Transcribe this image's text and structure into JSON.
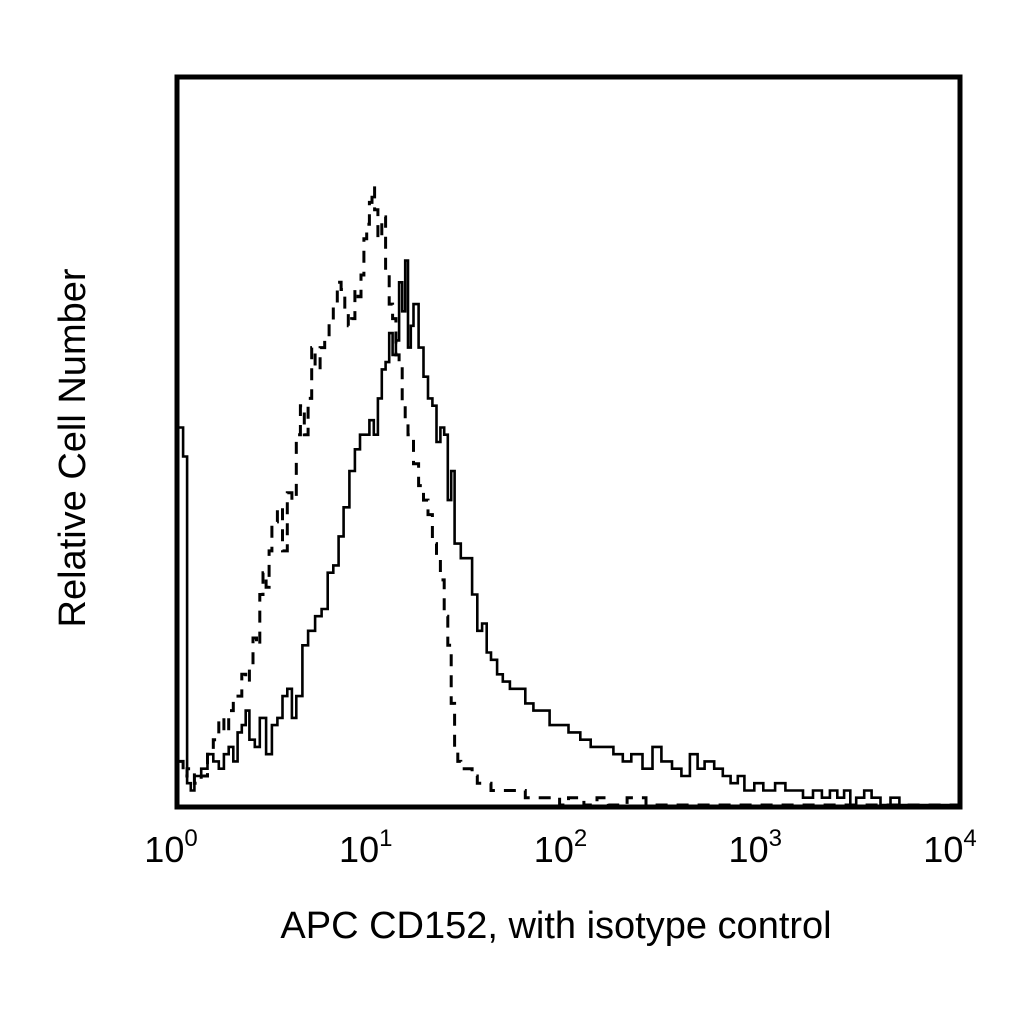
{
  "chart_data": {
    "type": "line",
    "title": "",
    "xlabel": "APC CD152, with isotype control",
    "ylabel": "Relative Cell Number",
    "x_scale": "log",
    "xlim": [
      1,
      10000
    ],
    "ylim": [
      0,
      100
    ],
    "grid": false,
    "legend": "none",
    "x_ticks": [
      {
        "value": 1,
        "base": "10",
        "exp": "0"
      },
      {
        "value": 10,
        "base": "10",
        "exp": "1"
      },
      {
        "value": 100,
        "base": "10",
        "exp": "2"
      },
      {
        "value": 1000,
        "base": "10",
        "exp": "3"
      },
      {
        "value": 10000,
        "base": "10",
        "exp": "4"
      }
    ],
    "y_ticks": [],
    "series": [
      {
        "style": "solid",
        "color": "#000000",
        "x": [
          1.0,
          1.05,
          1.1,
          1.15,
          1.2,
          1.3,
          1.4,
          1.5,
          1.6,
          1.7,
          1.8,
          1.9,
          2.0,
          2.1,
          2.2,
          2.3,
          2.45,
          2.6,
          2.8,
          3.0,
          3.2,
          3.4,
          3.6,
          3.8,
          4.0,
          4.3,
          4.6,
          5.0,
          5.4,
          5.8,
          6.2,
          6.6,
          7.0,
          7.5,
          8.0,
          8.5,
          9.0,
          9.5,
          10.0,
          10.5,
          11.0,
          11.5,
          12.0,
          12.5,
          13.0,
          13.5,
          14.0,
          14.5,
          15.0,
          15.5,
          16.0,
          17.0,
          18.0,
          19.0,
          20.0,
          21.0,
          22.0,
          23.0,
          24.0,
          25.0,
          26.0,
          28.0,
          30.0,
          32.0,
          34.0,
          36.0,
          38.0,
          40.0,
          43.0,
          46.0,
          50.0,
          55.0,
          60.0,
          66.0,
          72.0,
          80.0,
          90.0,
          100.0,
          115.0,
          130.0,
          150.0,
          170.0,
          190.0,
          210.0,
          240.0,
          270.0,
          300.0,
          340.0,
          380.0,
          420.0,
          460.0,
          500.0,
          560.0,
          620.0,
          680.0,
          740.0,
          800.0,
          900.0,
          1000.0,
          1150.0,
          1300.0,
          1450.0,
          1600.0,
          1800.0,
          2000.0,
          2200.0,
          2400.0,
          2600.0,
          2800.0,
          3000.0,
          3300.0,
          3600.0,
          4000.0,
          4500.0,
          5000.0,
          6000.0,
          7000.0,
          8000.0,
          9000.0,
          10000.0
        ],
        "y": [
          52,
          48,
          3,
          2,
          4,
          5,
          7,
          6,
          5,
          7,
          8,
          6,
          10,
          11,
          13,
          9,
          8,
          12,
          7,
          11,
          12,
          15,
          16,
          12,
          15,
          22,
          24,
          26,
          27,
          32,
          33,
          37,
          41,
          46,
          49,
          51,
          51,
          53,
          51,
          56,
          60,
          61,
          65,
          62,
          64,
          72,
          68,
          75,
          63,
          66,
          69,
          63,
          59,
          56,
          55,
          50,
          52,
          51,
          42,
          46,
          36,
          34,
          34,
          29,
          24,
          25,
          21,
          20,
          18,
          17,
          16,
          16,
          14,
          13,
          13,
          11,
          11,
          10,
          9,
          8,
          8,
          7,
          6,
          7,
          5,
          8,
          6,
          5,
          4,
          7,
          5,
          6,
          5,
          4,
          3,
          4,
          2,
          3,
          2,
          3,
          2,
          2,
          1,
          2,
          1,
          2,
          1,
          2,
          0,
          1,
          2,
          1,
          0,
          1,
          0,
          0,
          0,
          0,
          0,
          0
        ]
      },
      {
        "style": "dashed",
        "color": "#000000",
        "x": [
          1.0,
          1.05,
          1.1,
          1.2,
          1.3,
          1.4,
          1.5,
          1.6,
          1.7,
          1.8,
          1.9,
          2.0,
          2.1,
          2.2,
          2.3,
          2.4,
          2.5,
          2.6,
          2.7,
          2.8,
          2.9,
          3.0,
          3.2,
          3.4,
          3.6,
          3.8,
          4.0,
          4.2,
          4.4,
          4.6,
          4.8,
          5.0,
          5.3,
          5.6,
          5.9,
          6.2,
          6.5,
          6.8,
          7.1,
          7.4,
          7.7,
          8.0,
          8.3,
          8.6,
          8.9,
          9.2,
          9.5,
          9.8,
          10.1,
          10.5,
          11.0,
          11.5,
          12.0,
          12.5,
          13.0,
          13.5,
          14.0,
          14.5,
          15.0,
          16.0,
          17.0,
          18.0,
          19.0,
          20.0,
          21.0,
          22.0,
          23.0,
          24.0,
          25.0,
          26.0,
          27.0,
          28.0,
          30.0,
          32.0,
          34.0,
          37.0,
          40.0,
          45.0,
          50.0,
          60.0,
          70.0,
          80.0,
          90.0,
          100.0,
          120.0,
          140.0,
          160.0,
          200.0,
          250.0,
          300.0,
          400.0,
          500.0,
          700.0,
          1000.0,
          2000.0,
          5000.0,
          10000.0
        ],
        "y": [
          6,
          4,
          5,
          3,
          4,
          7,
          9,
          12,
          10,
          13,
          15,
          15,
          18,
          17,
          19,
          23,
          22,
          29,
          32,
          30,
          35,
          39,
          41,
          35,
          43,
          42,
          51,
          55,
          51,
          56,
          63,
          60,
          63,
          64,
          66,
          69,
          72,
          71,
          68,
          66,
          67,
          71,
          70,
          73,
          78,
          80,
          83,
          85,
          82,
          78,
          81,
          73,
          69,
          67,
          62,
          61,
          55,
          53,
          51,
          47,
          44,
          42,
          40,
          36,
          34,
          31,
          26,
          22,
          14,
          8,
          6,
          5,
          5,
          4,
          3,
          3,
          2,
          2,
          2,
          1,
          1,
          1,
          0,
          1,
          0,
          1,
          0,
          1,
          0,
          0,
          0,
          0,
          0,
          0,
          0,
          0,
          0
        ]
      }
    ]
  }
}
